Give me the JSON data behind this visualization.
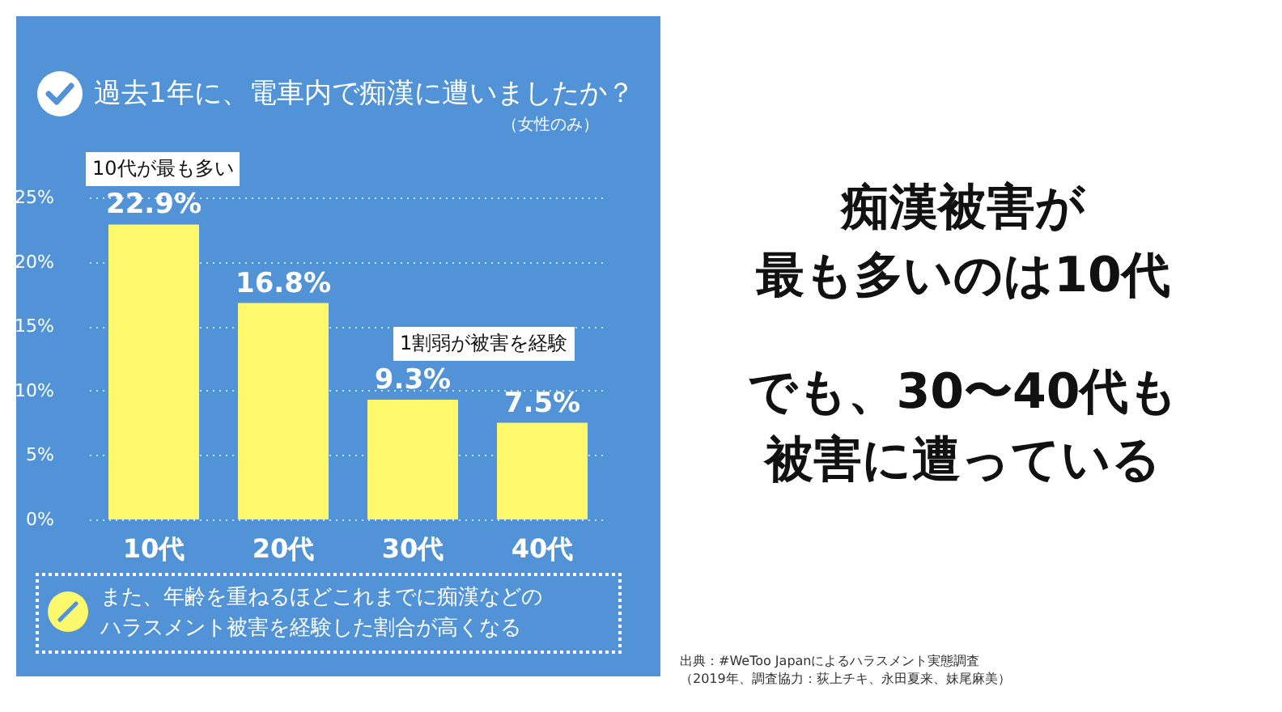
{
  "chart_data": {
    "type": "bar",
    "title": "過去1年に、電車内で痴漢に遭いましたか？",
    "subtitle": "（女性のみ）",
    "categories": [
      "10代",
      "20代",
      "30代",
      "40代"
    ],
    "values": [
      22.9,
      16.8,
      9.3,
      7.5
    ],
    "color": "#fdf86c",
    "value_labels": [
      "22.9%",
      "16.8%",
      "9.3%",
      "7.5%"
    ],
    "ylim": [
      0,
      25
    ],
    "yticks": [
      {
        "value": 0,
        "label": "0%"
      },
      {
        "value": 5,
        "label": "5%"
      },
      {
        "value": 10,
        "label": "10%"
      },
      {
        "value": 15,
        "label": "15%"
      },
      {
        "value": 20,
        "label": "20%"
      },
      {
        "value": 25,
        "label": "25%"
      }
    ],
    "grid": "y",
    "annotations": [
      {
        "text": "10代が最も多い",
        "x": "10代",
        "y": 22.9
      },
      {
        "text": "1割弱が被害を経験",
        "x": "30代",
        "y": 9.3
      },
      "また、年齢を重ねるほどこれまでに痴漢などのハラスメント被害を経験した割合が高くなる",
      "痴漢被害が",
      "最も多いのは10代",
      "でも、30〜40代も",
      "被害に遭っている",
      "出典：#WeToo Japanによるハラスメント実態調査",
      "（2019年、調査協力：荻上チキ、永田夏来、妹尾麻美）"
    ]
  }
}
